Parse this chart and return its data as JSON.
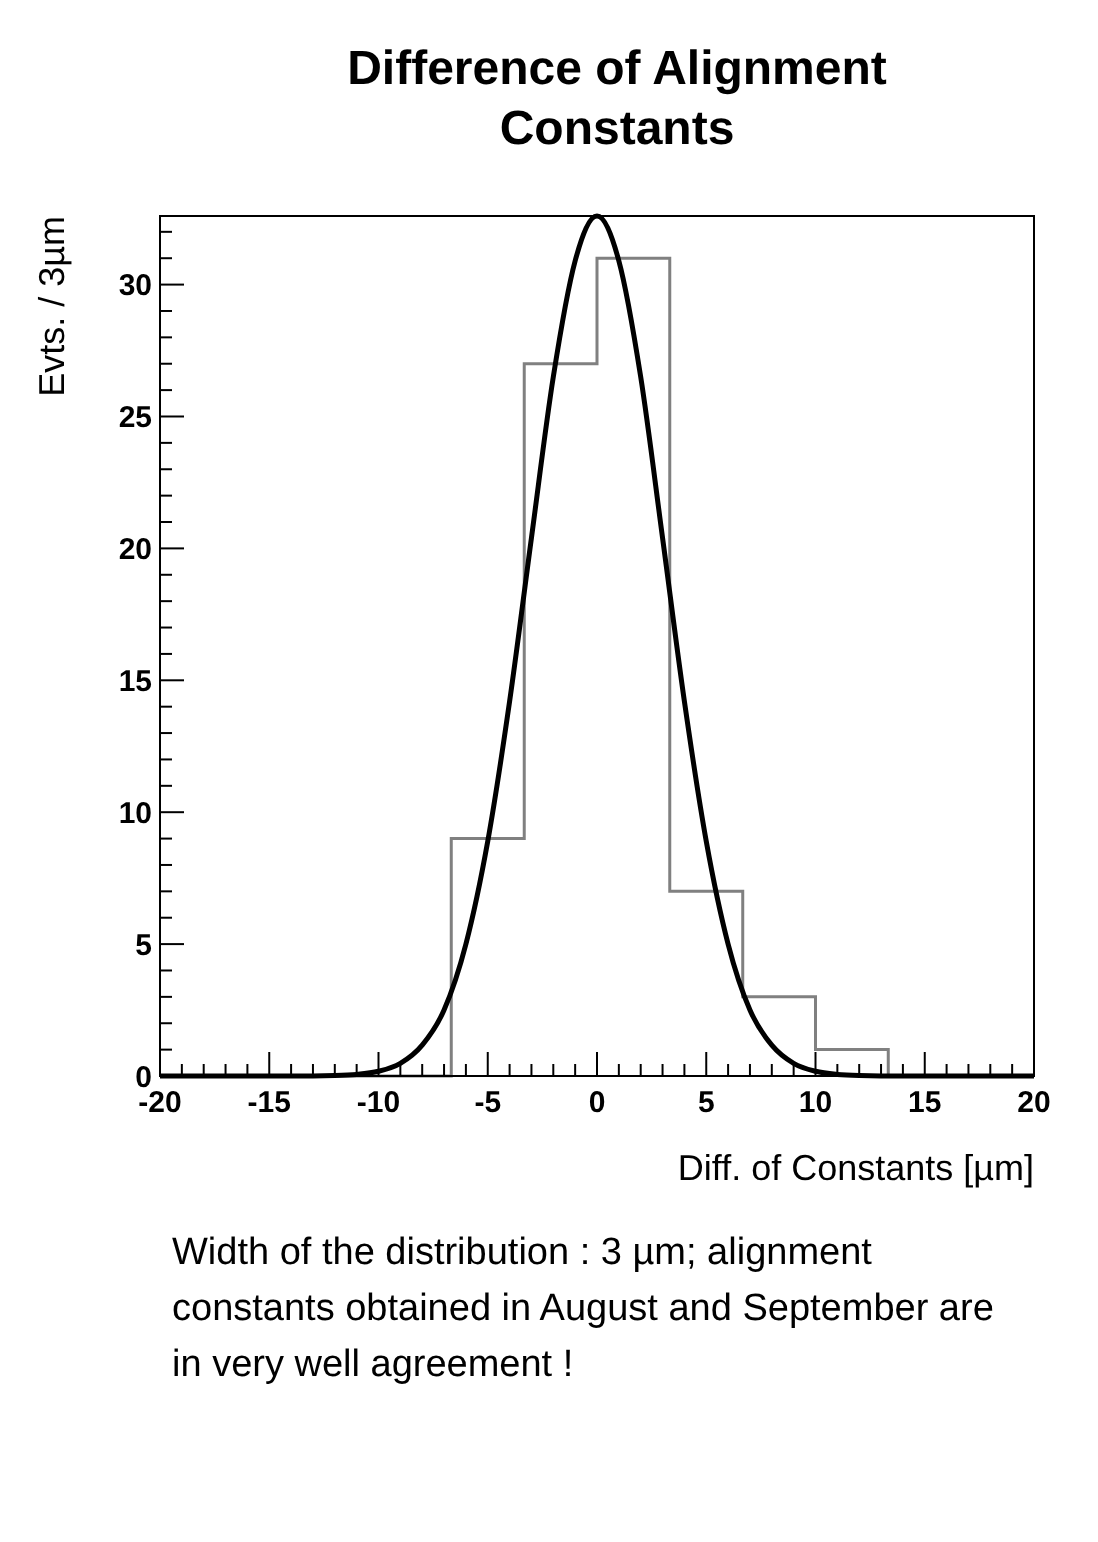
{
  "chart_data": {
    "type": "histogram",
    "title": "Difference of Alignment Constants",
    "xlabel": "Diff. of Constants [µm]",
    "ylabel": "Evts. / 3µm",
    "bins": [
      -20,
      -16.67,
      -13.33,
      -10,
      -6.67,
      -3.33,
      0,
      3.33,
      6.67,
      10,
      13.33,
      16.67,
      20
    ],
    "values": [
      0,
      0,
      0,
      0,
      9,
      27,
      31,
      7,
      3,
      1,
      0,
      0
    ],
    "color": "#808080",
    "series": [
      {
        "type": "line",
        "color": "#000000",
        "x": [
          -20,
          -14,
          -12,
          -11,
          -10,
          -9,
          -8,
          -7,
          -6,
          -5,
          -4,
          -3,
          -2,
          -1,
          0,
          1,
          2,
          3,
          4,
          5,
          6,
          7,
          8,
          9,
          10,
          11,
          12,
          14,
          20
        ],
        "values": [
          0,
          0,
          0.02,
          0.06,
          0.18,
          0.48,
          1.17,
          2.5,
          5,
          8.9,
          14.2,
          20.4,
          26.5,
          30.9,
          32.6,
          30.9,
          26.5,
          20.4,
          14.2,
          8.9,
          5,
          2.5,
          1.17,
          0.48,
          0.18,
          0.06,
          0.02,
          0,
          0
        ]
      }
    ],
    "xlim": [
      -20,
      20
    ],
    "xticks": [
      -20,
      -15,
      -10,
      -5,
      0,
      5,
      10,
      15,
      20
    ],
    "ylim": [
      0,
      32.6
    ],
    "yticks": [
      0,
      5,
      10,
      15,
      20,
      25,
      30
    ],
    "grid": false,
    "annotations": [
      "Width of the distribution : 3 µm; alignment constants obtained in August and September are in very well agreement !"
    ]
  }
}
